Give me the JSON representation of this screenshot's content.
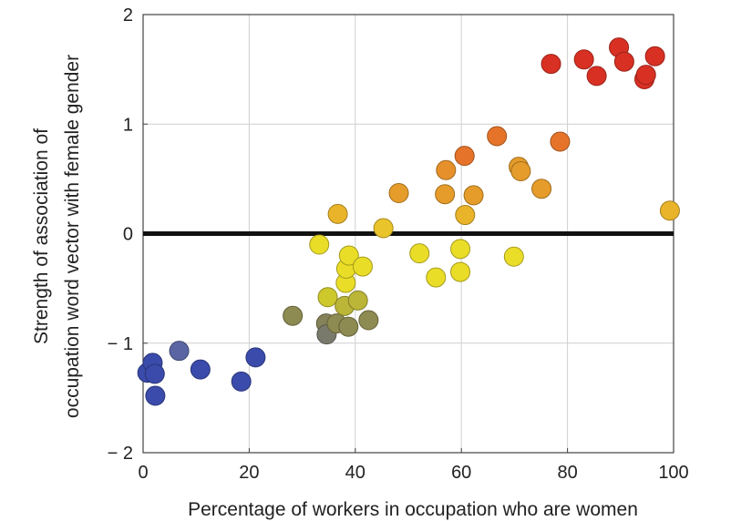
{
  "chart_data": {
    "type": "scatter",
    "title": "",
    "xlabel": "Percentage of workers in occupation who are women",
    "ylabel_lines": [
      "Strength of association of",
      "occupation word vector with female gender"
    ],
    "xlim": [
      0,
      100
    ],
    "ylim": [
      -2,
      2
    ],
    "x_ticks": [
      0,
      20,
      40,
      60,
      80,
      100
    ],
    "y_ticks": [
      -2,
      -1,
      0,
      1,
      2
    ],
    "x_tick_labels": [
      "0",
      "20",
      "40",
      "60",
      "80",
      "100"
    ],
    "y_tick_labels": [
      "− 2",
      "− 1",
      "0",
      "1",
      "2"
    ],
    "grid": true,
    "reference_line_y": 0,
    "points": [
      {
        "x": 0.8,
        "y": -1.27,
        "color": "#3b4bab"
      },
      {
        "x": 1.8,
        "y": -1.18,
        "color": "#3b4bab"
      },
      {
        "x": 2.2,
        "y": -1.28,
        "color": "#3b4bab"
      },
      {
        "x": 2.3,
        "y": -1.48,
        "color": "#3b4bab"
      },
      {
        "x": 6.8,
        "y": -1.07,
        "color": "#5a66a3"
      },
      {
        "x": 10.8,
        "y": -1.24,
        "color": "#3b4bab"
      },
      {
        "x": 18.5,
        "y": -1.35,
        "color": "#3b4bab"
      },
      {
        "x": 21.2,
        "y": -1.13,
        "color": "#3b4bab"
      },
      {
        "x": 28.2,
        "y": -0.75,
        "color": "#8d8a52"
      },
      {
        "x": 34.5,
        "y": -0.82,
        "color": "#85825a"
      },
      {
        "x": 34.6,
        "y": -0.92,
        "color": "#7a7a6c"
      },
      {
        "x": 36.5,
        "y": -0.82,
        "color": "#8d8a52"
      },
      {
        "x": 38.7,
        "y": -0.85,
        "color": "#8d8a52"
      },
      {
        "x": 42.5,
        "y": -0.79,
        "color": "#8d8a52"
      },
      {
        "x": 34.8,
        "y": -0.58,
        "color": "#cdc82b"
      },
      {
        "x": 38.0,
        "y": -0.66,
        "color": "#bbb538"
      },
      {
        "x": 40.5,
        "y": -0.61,
        "color": "#bbb538"
      },
      {
        "x": 38.2,
        "y": -0.45,
        "color": "#eadd28"
      },
      {
        "x": 38.3,
        "y": -0.32,
        "color": "#eadd28"
      },
      {
        "x": 38.8,
        "y": -0.2,
        "color": "#eadd28"
      },
      {
        "x": 41.4,
        "y": -0.3,
        "color": "#eadd28"
      },
      {
        "x": 33.2,
        "y": -0.1,
        "color": "#eadd28"
      },
      {
        "x": 36.7,
        "y": 0.18,
        "color": "#e9b42a"
      },
      {
        "x": 45.3,
        "y": 0.05,
        "color": "#e9c42a"
      },
      {
        "x": 48.2,
        "y": 0.37,
        "color": "#e59c2a"
      },
      {
        "x": 52.1,
        "y": -0.18,
        "color": "#eadd28"
      },
      {
        "x": 55.2,
        "y": -0.4,
        "color": "#eadd28"
      },
      {
        "x": 59.8,
        "y": -0.14,
        "color": "#eadd28"
      },
      {
        "x": 59.8,
        "y": -0.35,
        "color": "#eadd28"
      },
      {
        "x": 56.9,
        "y": 0.36,
        "color": "#e59c2a"
      },
      {
        "x": 57.1,
        "y": 0.58,
        "color": "#e5902a"
      },
      {
        "x": 60.7,
        "y": 0.17,
        "color": "#e9b42a"
      },
      {
        "x": 60.6,
        "y": 0.71,
        "color": "#e5742a"
      },
      {
        "x": 62.3,
        "y": 0.35,
        "color": "#e59c2a"
      },
      {
        "x": 66.7,
        "y": 0.89,
        "color": "#e5742a"
      },
      {
        "x": 69.9,
        "y": -0.21,
        "color": "#eadd28"
      },
      {
        "x": 70.8,
        "y": 0.61,
        "color": "#e59c2a"
      },
      {
        "x": 71.2,
        "y": 0.57,
        "color": "#e59c2a"
      },
      {
        "x": 75.1,
        "y": 0.41,
        "color": "#e59c2a"
      },
      {
        "x": 78.6,
        "y": 0.84,
        "color": "#e5742a"
      },
      {
        "x": 76.9,
        "y": 1.55,
        "color": "#d93024"
      },
      {
        "x": 83.1,
        "y": 1.59,
        "color": "#d93024"
      },
      {
        "x": 85.5,
        "y": 1.44,
        "color": "#d93024"
      },
      {
        "x": 89.7,
        "y": 1.7,
        "color": "#d93024"
      },
      {
        "x": 90.7,
        "y": 1.57,
        "color": "#d93024"
      },
      {
        "x": 94.5,
        "y": 1.41,
        "color": "#d93024"
      },
      {
        "x": 94.8,
        "y": 1.45,
        "color": "#d93024"
      },
      {
        "x": 96.5,
        "y": 1.62,
        "color": "#d93024"
      },
      {
        "x": 99.3,
        "y": 0.21,
        "color": "#e9b42a"
      }
    ]
  },
  "colors": {
    "grid": "#cfcfcf",
    "frame": "#444444",
    "reference_line": "#111111",
    "marker_stroke_darken": 0.7
  }
}
